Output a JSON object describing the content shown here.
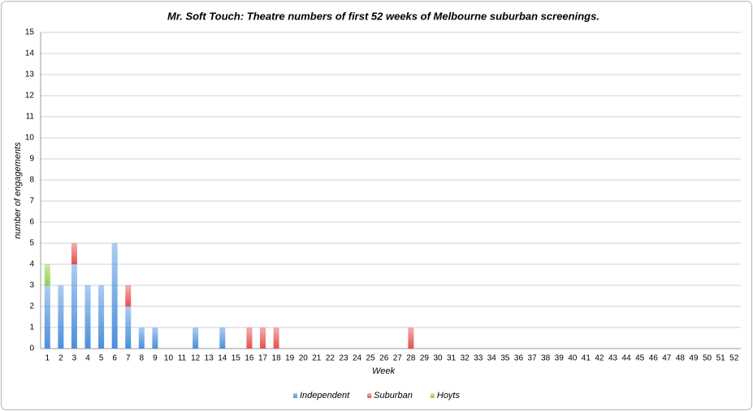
{
  "chart_data": {
    "type": "stacked-bar",
    "title": "Mr. Soft Touch: Theatre numbers of first 52 weeks of Melbourne suburban screenings.",
    "xlabel": "Week",
    "ylabel": "number of engagements",
    "categories": [
      "1",
      "2",
      "3",
      "4",
      "5",
      "6",
      "7",
      "8",
      "9",
      "10",
      "11",
      "12",
      "13",
      "14",
      "15",
      "16",
      "17",
      "18",
      "19",
      "20",
      "21",
      "22",
      "23",
      "24",
      "25",
      "26",
      "27",
      "28",
      "29",
      "30",
      "31",
      "32",
      "33",
      "34",
      "35",
      "36",
      "37",
      "38",
      "39",
      "40",
      "41",
      "42",
      "43",
      "44",
      "45",
      "46",
      "47",
      "48",
      "49",
      "50",
      "51",
      "52"
    ],
    "series": [
      {
        "name": "Independent",
        "color": "#4a8fdc",
        "values": [
          3,
          3,
          4,
          3,
          3,
          5,
          2,
          1,
          1,
          0,
          0,
          1,
          0,
          1,
          0,
          0,
          0,
          0,
          0,
          0,
          0,
          0,
          0,
          0,
          0,
          0,
          0,
          0,
          0,
          0,
          0,
          0,
          0,
          0,
          0,
          0,
          0,
          0,
          0,
          0,
          0,
          0,
          0,
          0,
          0,
          0,
          0,
          0,
          0,
          0,
          0,
          0
        ]
      },
      {
        "name": "Suburban",
        "color": "#e4504f",
        "values": [
          0,
          0,
          1,
          0,
          0,
          0,
          1,
          0,
          0,
          0,
          0,
          0,
          0,
          0,
          0,
          1,
          1,
          1,
          0,
          0,
          0,
          0,
          0,
          0,
          0,
          0,
          0,
          1,
          0,
          0,
          0,
          0,
          0,
          0,
          0,
          0,
          0,
          0,
          0,
          0,
          0,
          0,
          0,
          0,
          0,
          0,
          0,
          0,
          0,
          0,
          0,
          0
        ]
      },
      {
        "name": "Hoyts",
        "color": "#8fd04a",
        "values": [
          1,
          0,
          0,
          0,
          0,
          0,
          0,
          0,
          0,
          0,
          0,
          0,
          0,
          0,
          0,
          0,
          0,
          0,
          0,
          0,
          0,
          0,
          0,
          0,
          0,
          0,
          0,
          0,
          0,
          0,
          0,
          0,
          0,
          0,
          0,
          0,
          0,
          0,
          0,
          0,
          0,
          0,
          0,
          0,
          0,
          0,
          0,
          0,
          0,
          0,
          0,
          0
        ]
      }
    ],
    "ylim": [
      0,
      15
    ],
    "yticks": [
      0,
      1,
      2,
      3,
      4,
      5,
      6,
      7,
      8,
      9,
      10,
      11,
      12,
      13,
      14,
      15
    ],
    "grid": true,
    "legend": "bottom"
  }
}
